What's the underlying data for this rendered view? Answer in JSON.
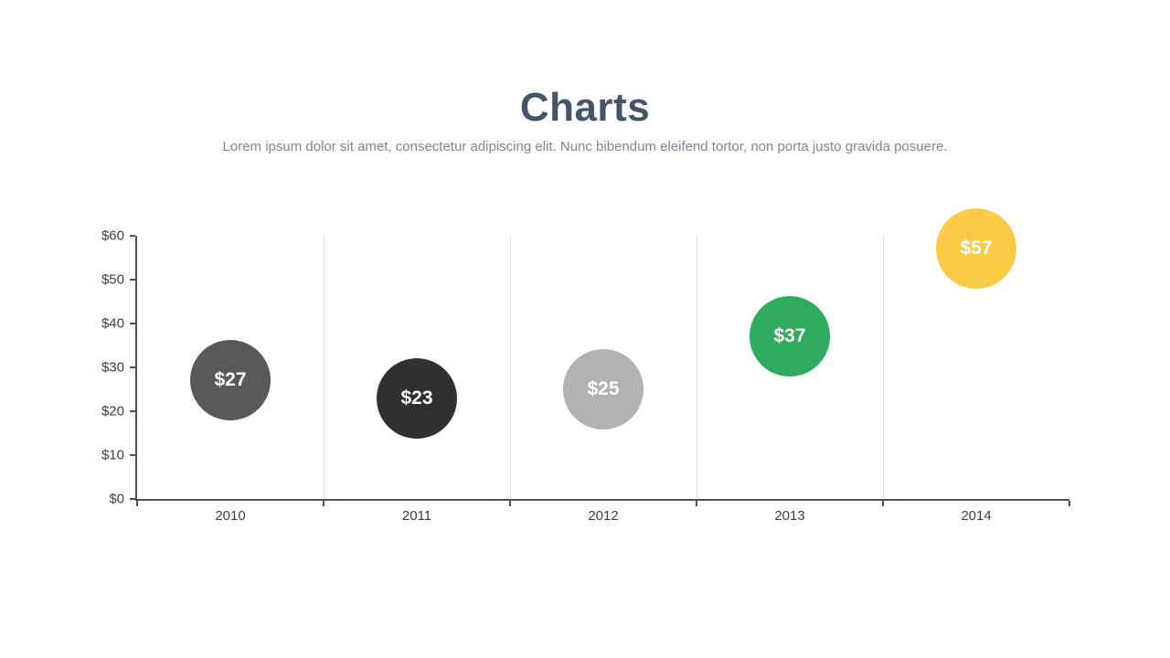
{
  "header": {
    "title": "Charts",
    "subtitle": "Lorem ipsum dolor sit amet, consectetur adipiscing elit. Nunc bibendum eleifend tortor, non porta justo gravida posuere."
  },
  "colors": {
    "title": "#44546a",
    "subtitle": "#7b8794",
    "axis_line": "#46525f",
    "tick_label": "#404040",
    "gridline": "#e3e3e3",
    "bubble_label": "#ffffff"
  },
  "chart_data": {
    "type": "scatter",
    "subtype": "bubble",
    "title": "",
    "xlabel": "",
    "ylabel": "",
    "categories": [
      "2010",
      "2011",
      "2012",
      "2013",
      "2014"
    ],
    "points": [
      {
        "category": "2010",
        "value": 27,
        "label": "$27",
        "color": "#58595b"
      },
      {
        "category": "2011",
        "value": 23,
        "label": "$23",
        "color": "#2f3031"
      },
      {
        "category": "2012",
        "value": 25,
        "label": "$25",
        "color": "#b2b2b4"
      },
      {
        "category": "2013",
        "value": 37,
        "label": "$37",
        "color": "#2fab5e"
      },
      {
        "category": "2014",
        "value": 57,
        "label": "$57",
        "color": "#fccb45"
      }
    ],
    "ylim": [
      0,
      60
    ],
    "ytick_step": 10,
    "y_tick_labels": [
      "$0",
      "$10",
      "$20",
      "$30",
      "$40",
      "$50",
      "$60"
    ],
    "grid": "vertical-category-boundaries",
    "legend": "none"
  }
}
